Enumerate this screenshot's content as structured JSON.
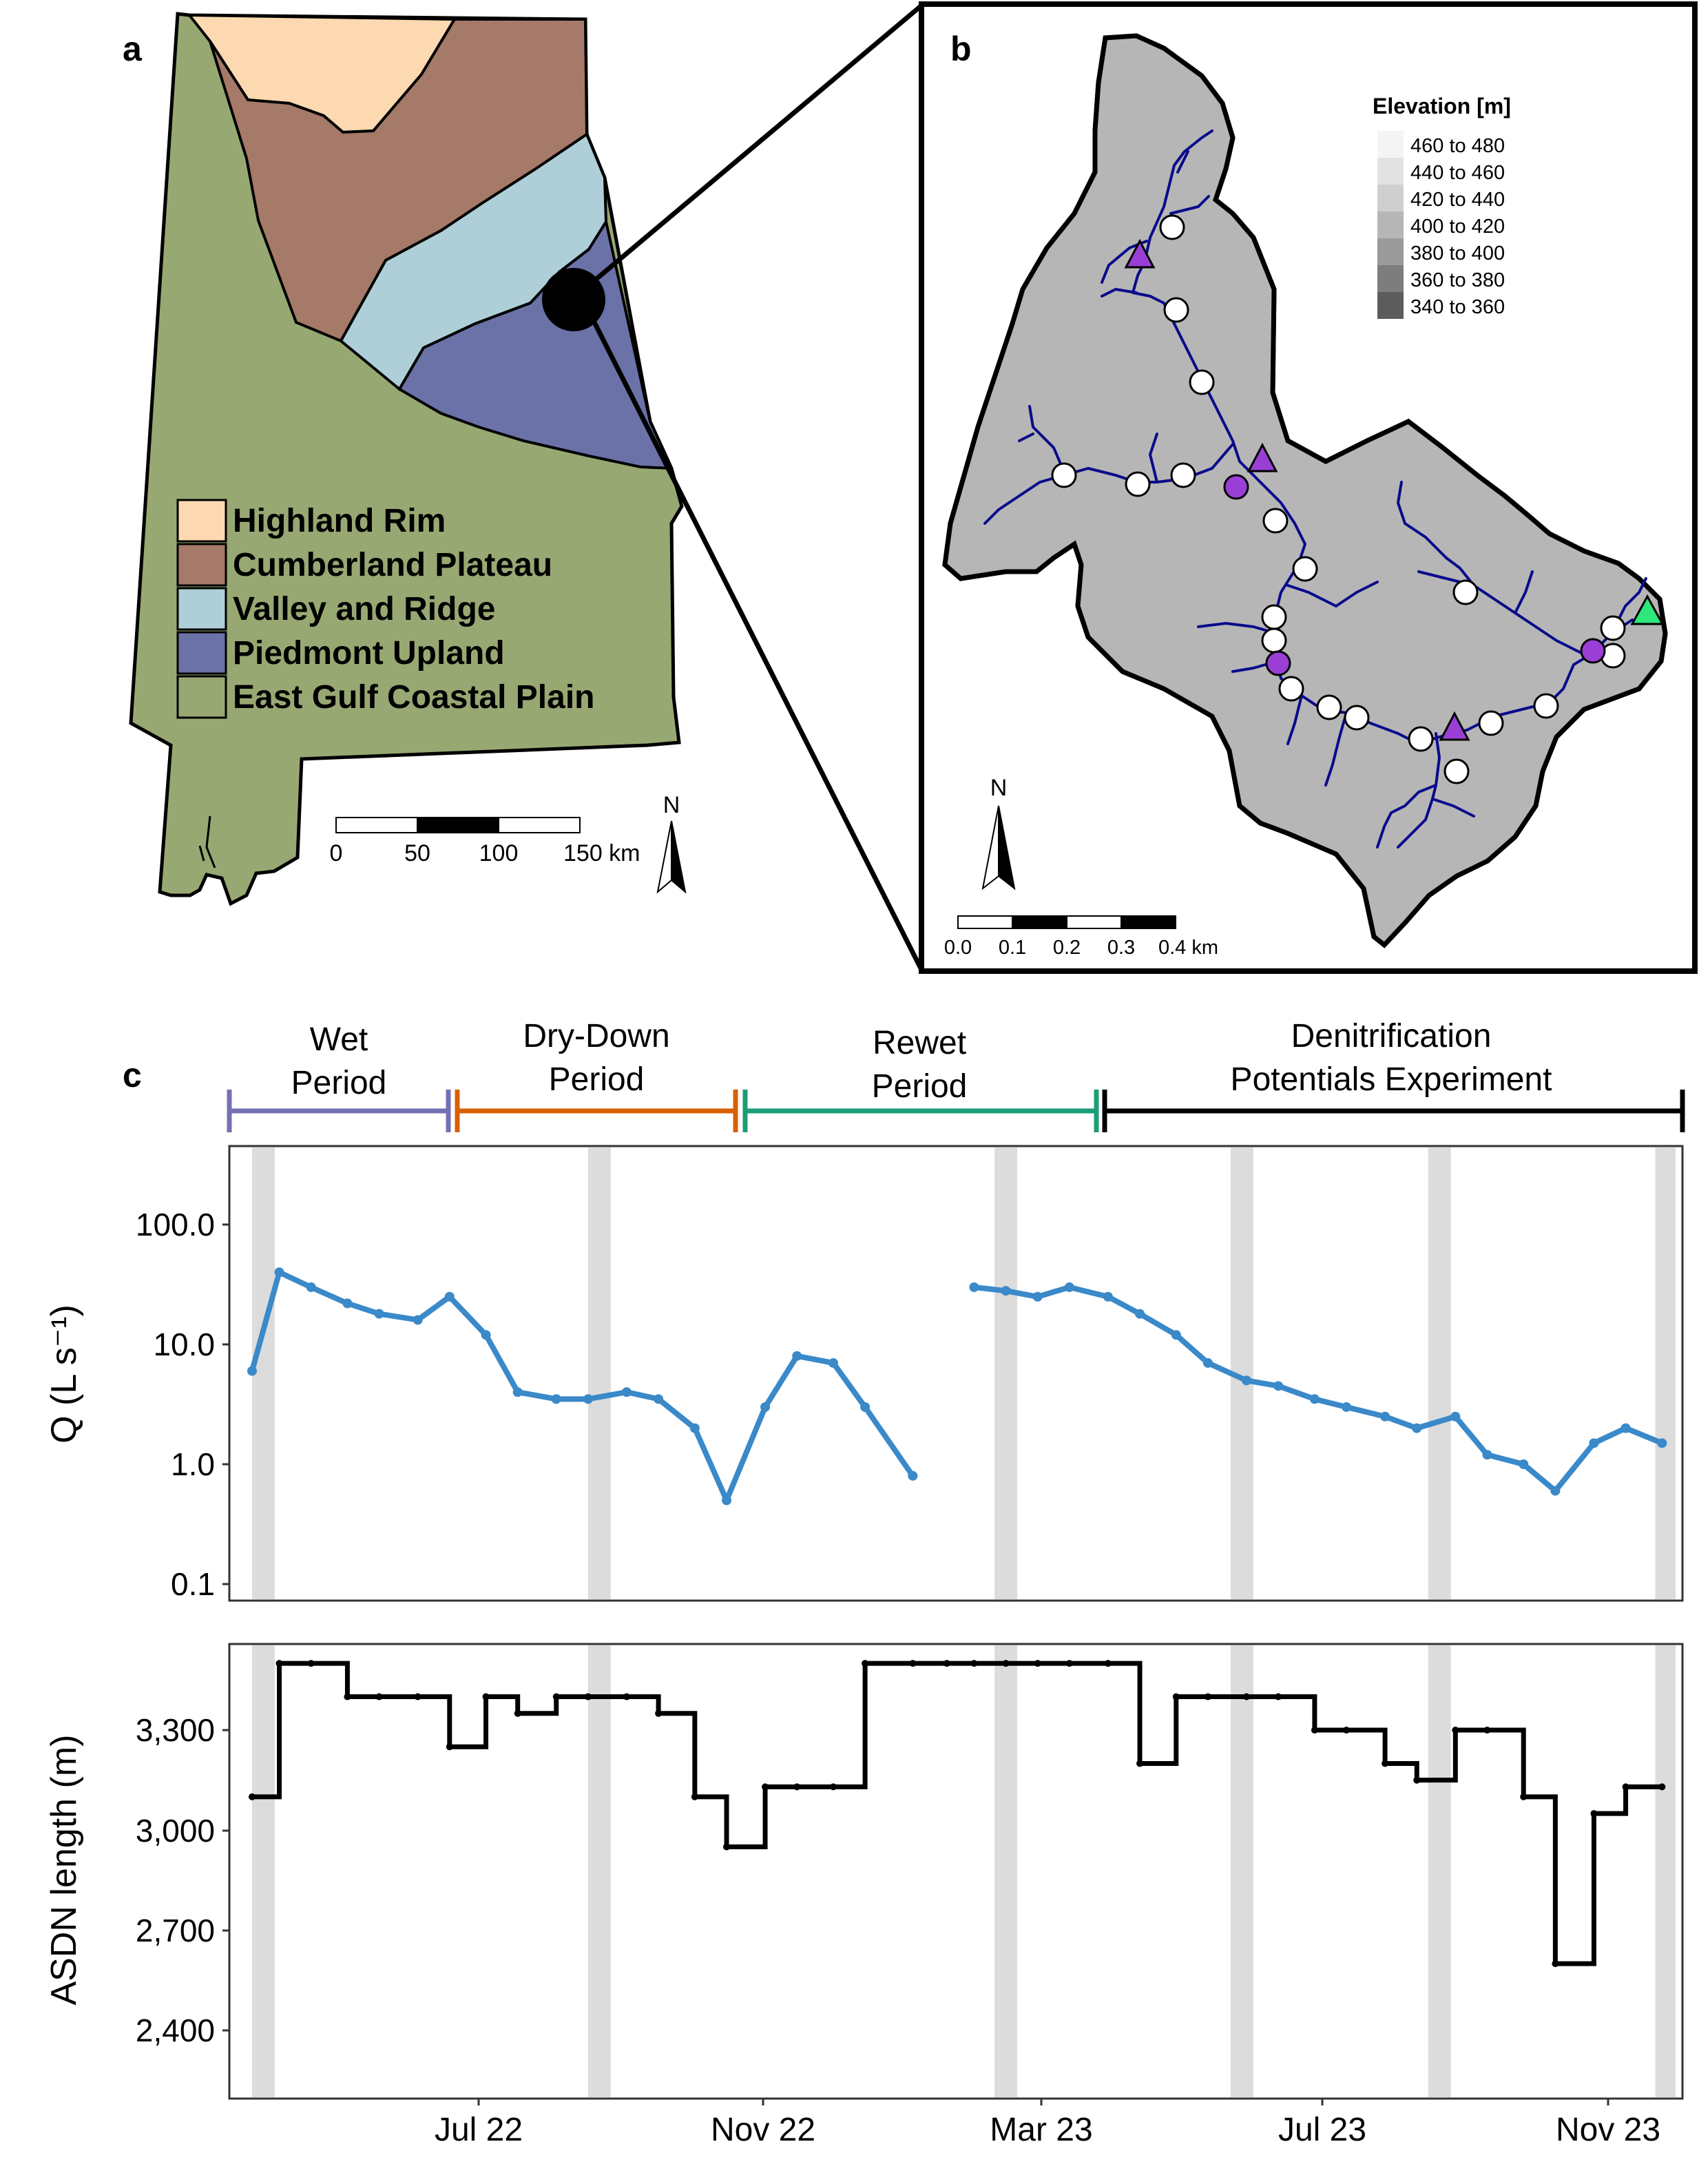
{
  "panel_a": {
    "label": "a",
    "legend": [
      {
        "name": "Highland Rim",
        "color": "#fcd9b1"
      },
      {
        "name": "Cumberland Plateau",
        "color": "#a67a68"
      },
      {
        "name": "Valley and Ridge",
        "color": "#aecfd8"
      },
      {
        "name": "Piedmont Upland",
        "color": "#6a72a8"
      },
      {
        "name": "East Gulf Coastal Plain",
        "color": "#98a872"
      }
    ],
    "scalebar": {
      "ticks": [
        "0",
        "50",
        "100",
        "150 km"
      ]
    },
    "north": "N"
  },
  "panel_b": {
    "label": "b",
    "legend_title": "Elevation [m]",
    "elevation_classes": [
      {
        "label": "460 to 480",
        "color": "#f4f4f4"
      },
      {
        "label": "440 to 460",
        "color": "#e2e2e2"
      },
      {
        "label": "420 to 440",
        "color": "#cfcfcf"
      },
      {
        "label": "400 to 420",
        "color": "#b6b6b6"
      },
      {
        "label": "380 to 400",
        "color": "#9a9a9a"
      },
      {
        "label": "360 to 380",
        "color": "#7d7d7d"
      },
      {
        "label": "340 to 360",
        "color": "#5c5c5c"
      }
    ],
    "scalebar": {
      "ticks": [
        "0.0",
        "0.1",
        "0.2",
        "0.3",
        "0.4 km"
      ]
    },
    "north": "N",
    "stream_color": "#0a0a8c",
    "sensor_white": "#ffffff",
    "sensor_purple": "#9a3fd6",
    "outlet_green": "#2de87a"
  },
  "panel_c": {
    "label": "c",
    "periods": [
      {
        "name": "Wet\nPeriod",
        "color": "#7570b3"
      },
      {
        "name": "Dry-Down\nPeriod",
        "color": "#d95f02"
      },
      {
        "name": "Rewet\nPeriod",
        "color": "#1b9e77"
      },
      {
        "name": "Denitrification\nPotentials Experiment",
        "color": "#000000"
      }
    ],
    "x_ticks": [
      "Jul 22",
      "Nov 22",
      "Mar 23",
      "Jul 23",
      "Nov 23"
    ],
    "q_color": "#3a89c9",
    "asdn_color": "#000000",
    "shade_color": "#dcdcdc"
  },
  "chart_data": [
    {
      "type": "line",
      "title": "",
      "xlabel": "",
      "ylabel": "Q (L s⁻¹)",
      "yscale": "log",
      "ylim": [
        0.08,
        400
      ],
      "y_ticks": [
        "100.0",
        "10.0",
        "1.0",
        "0.1"
      ],
      "grid": false,
      "series": [
        {
          "x": [
            "2022-03-20",
            "2022-04-01",
            "2022-04-15",
            "2022-05-01",
            "2022-05-15",
            "2022-06-01",
            "2022-06-15",
            "2022-07-01",
            "2022-07-15",
            "2022-08-01",
            "2022-08-15",
            "2022-09-01",
            "2022-09-15",
            "2022-10-01",
            "2022-10-15",
            "2022-11-01",
            "2022-11-15",
            "2022-12-01",
            "2022-12-15",
            "2023-01-05",
            "2023-01-20",
            "2023-02-01",
            "2023-02-15",
            "2023-03-01",
            "2023-03-15",
            "2023-04-01",
            "2023-04-15",
            "2023-05-01",
            "2023-05-15",
            "2023-06-01",
            "2023-06-15",
            "2023-07-01",
            "2023-07-15",
            "2023-08-01",
            "2023-08-15",
            "2023-09-01",
            "2023-09-15",
            "2023-10-01",
            "2023-10-15",
            "2023-11-01",
            "2023-11-15",
            "2023-12-01"
          ],
          "y": [
            6,
            40,
            30,
            22,
            18,
            16,
            25,
            12,
            4,
            3.5,
            3.5,
            4,
            3.5,
            2,
            0.5,
            3,
            8,
            7,
            3,
            0.8,
            null,
            30,
            28,
            25,
            30,
            25,
            18,
            12,
            7,
            5,
            4.5,
            3.5,
            3,
            2.5,
            2,
            2.5,
            1.2,
            1,
            0.6,
            1.5,
            2,
            1.5
          ]
        }
      ]
    },
    {
      "type": "line",
      "title": "",
      "xlabel": "",
      "ylabel": "ASDN length (m)",
      "ylim": [
        2330,
        3540
      ],
      "y_ticks": [
        "3,300",
        "3,000",
        "2,700",
        "2,400"
      ],
      "grid": false,
      "series": [
        {
          "x": [
            "2022-03-20",
            "2022-04-01",
            "2022-04-15",
            "2022-05-01",
            "2022-05-15",
            "2022-06-01",
            "2022-06-15",
            "2022-07-01",
            "2022-07-15",
            "2022-08-01",
            "2022-08-15",
            "2022-09-01",
            "2022-09-15",
            "2022-10-01",
            "2022-10-15",
            "2022-11-01",
            "2022-11-15",
            "2022-12-01",
            "2022-12-15",
            "2023-01-05",
            "2023-01-20",
            "2023-02-01",
            "2023-02-15",
            "2023-03-01",
            "2023-03-15",
            "2023-04-01",
            "2023-04-15",
            "2023-05-01",
            "2023-05-15",
            "2023-06-01",
            "2023-06-15",
            "2023-07-01",
            "2023-07-15",
            "2023-08-01",
            "2023-08-15",
            "2023-09-01",
            "2023-09-15",
            "2023-10-01",
            "2023-10-15",
            "2023-11-01",
            "2023-11-15",
            "2023-12-01"
          ],
          "y": [
            3100,
            3500,
            3500,
            3400,
            3400,
            3400,
            3250,
            3400,
            3350,
            3400,
            3400,
            3400,
            3350,
            3100,
            2950,
            3130,
            3130,
            3130,
            3500,
            3500,
            3500,
            3500,
            3500,
            3500,
            3500,
            3500,
            3200,
            3400,
            3400,
            3400,
            3400,
            3300,
            3300,
            3200,
            3150,
            3300,
            3300,
            3100,
            2600,
            3050,
            3130,
            3130
          ]
        }
      ]
    }
  ]
}
